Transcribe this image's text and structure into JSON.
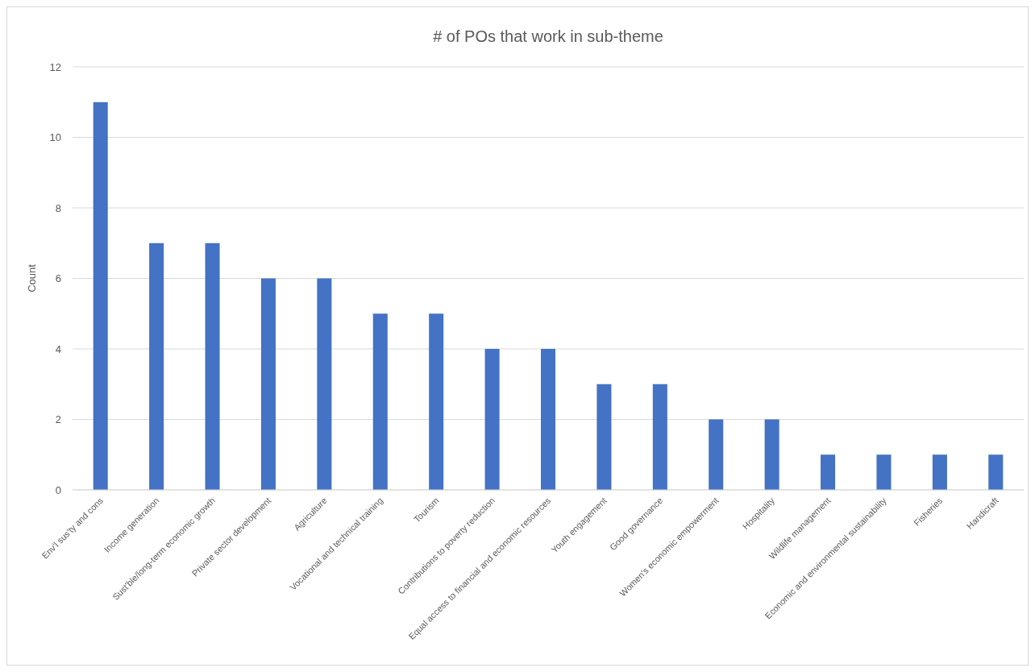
{
  "chart_data": {
    "type": "bar",
    "title": "# of POs that work in sub-theme",
    "ylabel": "Count",
    "categories": [
      "Env'l sus'ty and cons",
      "Income generation",
      "Sust'ble/long-term economic growth",
      "Private sector development",
      "Agriculture",
      "Vocational and technical training",
      "Tourism",
      "Contributions to poverty reduction",
      "Equal access to financial and economic resources",
      "Youth engagement",
      "Good governance",
      "Women's economic empowerment",
      "Hospitality",
      "Wildlife management",
      "Economic and environmental sustainability",
      "Fisheries",
      "Handicraft"
    ],
    "values": [
      11,
      7,
      7,
      6,
      6,
      5,
      5,
      4,
      4,
      3,
      3,
      2,
      2,
      1,
      1,
      1,
      1
    ],
    "color": "#4472c4",
    "ylim": [
      0,
      12
    ],
    "yticks": [
      0,
      2,
      4,
      6,
      8,
      10,
      12
    ],
    "grid": "y"
  }
}
